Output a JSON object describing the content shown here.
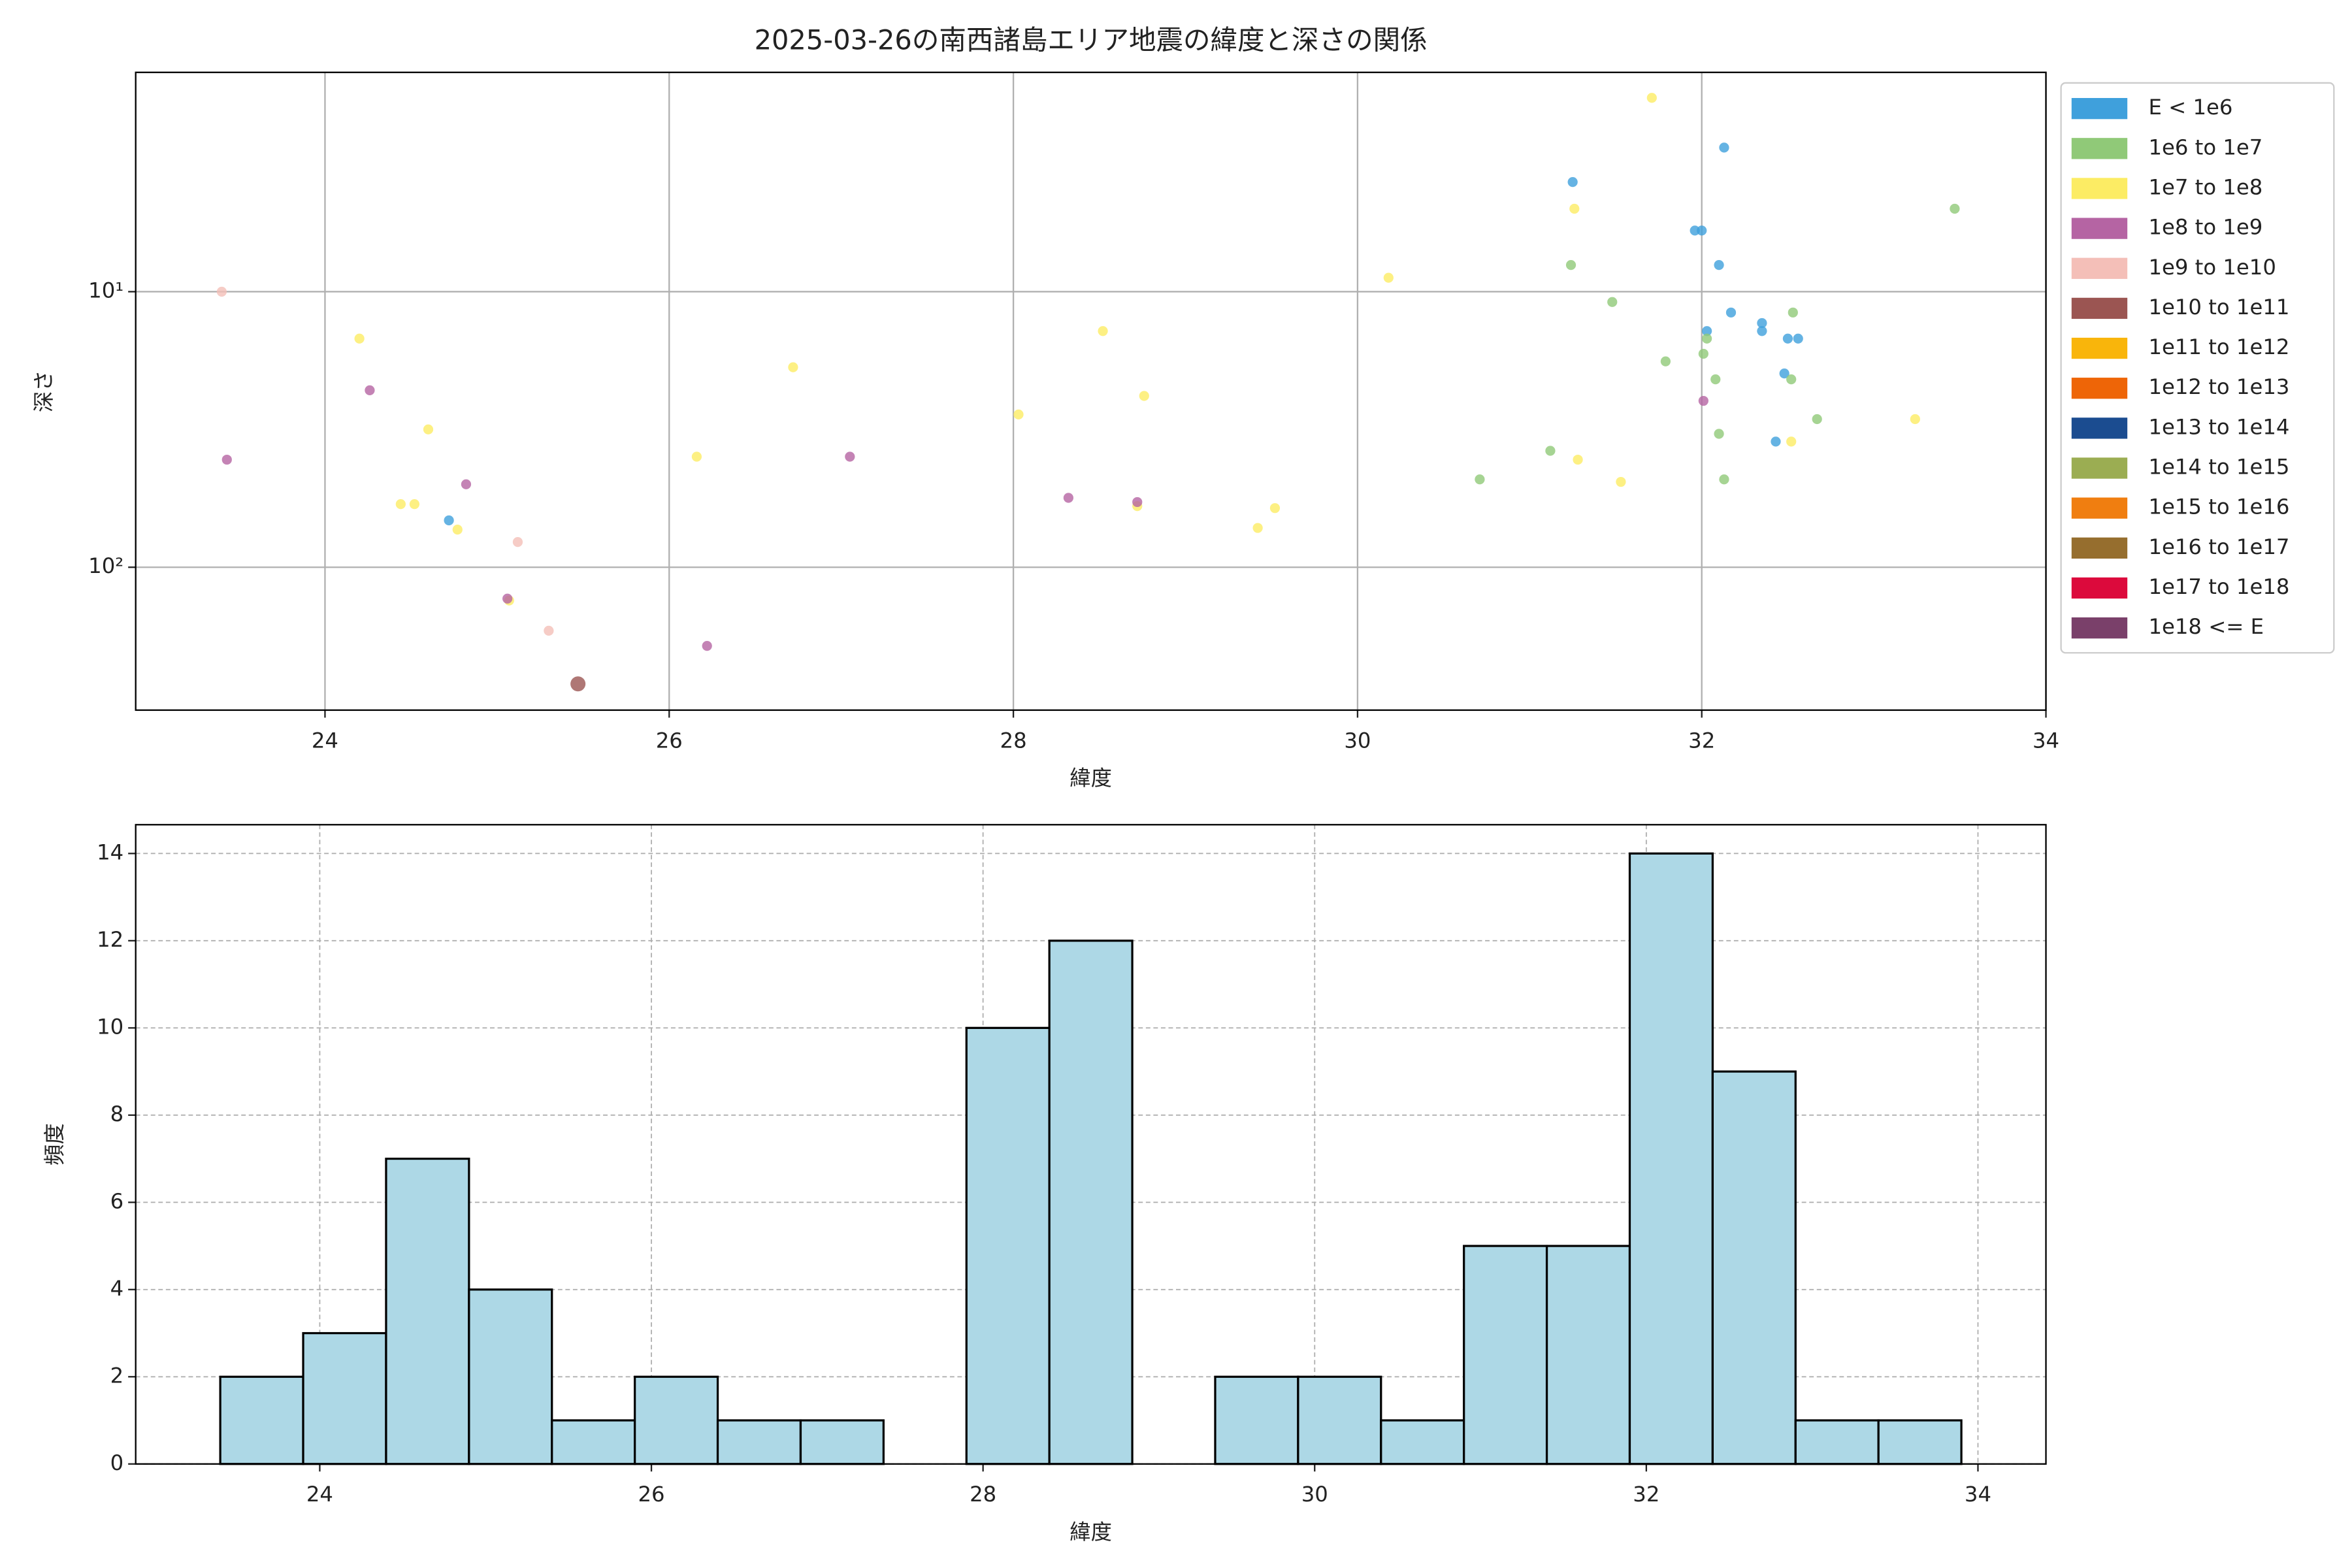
{
  "chart_data": [
    {
      "type": "scatter",
      "title": "2025-03-26の南西諸島エリア地震の緯度と深さの関係",
      "x_label": "緯度",
      "y_label": "深さ",
      "yscale": "log",
      "grid": true,
      "legend": "outside right",
      "xlim": [
        22.9,
        34.0
      ],
      "xticks": [
        24,
        26,
        28,
        30,
        32,
        34
      ],
      "ylim": [
        330,
        1.6
      ],
      "yticks": [
        {
          "value": 10,
          "label": "10¹"
        },
        {
          "value": 100,
          "label": "10²"
        }
      ],
      "series": [
        {
          "name": "E < 1e6",
          "color": "#3fa0dc",
          "x": [
            31.25,
            32.13,
            31.96,
            32.0,
            32.1,
            32.17,
            32.03,
            32.35,
            32.35,
            32.5,
            32.56,
            32.48,
            32.43,
            24.72
          ],
          "values": [
            4.0,
            3.0,
            6.0,
            6.0,
            8.0,
            11.9,
            13.9,
            13.0,
            13.9,
            14.8,
            14.8,
            19.8,
            35,
            67.6
          ]
        },
        {
          "name": "1e6 to 1e7",
          "color": "#90c978",
          "x": [
            31.24,
            31.48,
            32.53,
            32.03,
            32.01,
            31.79,
            32.08,
            32.52,
            32.67,
            32.1,
            31.12,
            30.71,
            32.13,
            33.47
          ],
          "values": [
            8.0,
            10.9,
            11.9,
            14.8,
            16.8,
            17.9,
            20.8,
            20.8,
            29,
            32.8,
            37.8,
            48,
            48,
            5.0
          ]
        },
        {
          "name": "1e7 to 1e8",
          "color": "#fcec64",
          "x": [
            31.71,
            31.26,
            30.18,
            24.2,
            28.52,
            26.72,
            28.76,
            28.03,
            24.6,
            26.16,
            31.28,
            32.52,
            33.24,
            31.53,
            24.44,
            24.52,
            24.77,
            28.72,
            29.42,
            29.52,
            25.07
          ],
          "values": [
            1.98,
            5.0,
            8.9,
            14.8,
            13.9,
            18.8,
            23.9,
            27.9,
            31.6,
            39.7,
            40.7,
            35,
            29,
            49,
            59,
            59,
            73,
            60,
            72,
            61,
            132
          ]
        },
        {
          "name": "1e8 to 1e9",
          "color": "#b564a3",
          "x": [
            24.26,
            23.43,
            24.82,
            27.05,
            28.32,
            28.72,
            32.01,
            25.06,
            26.22
          ],
          "values": [
            22.8,
            40.7,
            50,
            39.7,
            56,
            58,
            24.9,
            130,
            193
          ]
        },
        {
          "name": "1e9 to 1e10",
          "color": "#f4bfb8",
          "x": [
            23.4,
            25.12,
            25.3
          ],
          "values": [
            10,
            81,
            170
          ]
        },
        {
          "name": "1e10 to 1e11",
          "color": "#9b5552",
          "x": [
            25.47
          ],
          "values": [
            265
          ]
        },
        {
          "name": "1e11 to 1e12",
          "color": "#f9b50b",
          "x": [],
          "values": []
        },
        {
          "name": "1e12 to 1e13",
          "color": "#ee6507",
          "x": [],
          "values": []
        },
        {
          "name": "1e13 to 1e14",
          "color": "#1b4c90",
          "x": [],
          "values": []
        },
        {
          "name": "1e14 to 1e15",
          "color": "#9bad52",
          "x": [],
          "values": []
        },
        {
          "name": "1e15 to 1e16",
          "color": "#f07e10",
          "x": [],
          "values": []
        },
        {
          "name": "1e16 to 1e17",
          "color": "#966e2e",
          "x": [],
          "values": []
        },
        {
          "name": "1e17 to 1e18",
          "color": "#dc0a3c",
          "x": [],
          "values": []
        },
        {
          "name": "1e18 <= E",
          "color": "#7a406a",
          "x": [],
          "values": []
        }
      ]
    },
    {
      "type": "histogram",
      "x_label": "緯度",
      "y_label": "頻度",
      "grid": true,
      "color": "#add8e6",
      "bins": [
        23.4,
        23.9,
        24.4,
        24.9,
        25.4,
        25.9,
        26.4,
        26.9,
        27.4,
        27.9,
        28.4,
        28.9,
        29.4,
        29.9,
        30.4,
        30.9,
        31.4,
        31.9,
        32.4,
        32.9,
        33.4,
        33.9
      ],
      "values": [
        2,
        3,
        7,
        4,
        1,
        2,
        1,
        1,
        0,
        10,
        12,
        0,
        2,
        2,
        1,
        5,
        5,
        14,
        9,
        1,
        1
      ],
      "xlim": [
        22.89,
        34.41
      ],
      "xticks": [
        24,
        26,
        28,
        30,
        32,
        34
      ],
      "ylim": [
        0,
        14.66
      ],
      "yticks": [
        0,
        2,
        4,
        6,
        8,
        10,
        12,
        14
      ]
    }
  ]
}
